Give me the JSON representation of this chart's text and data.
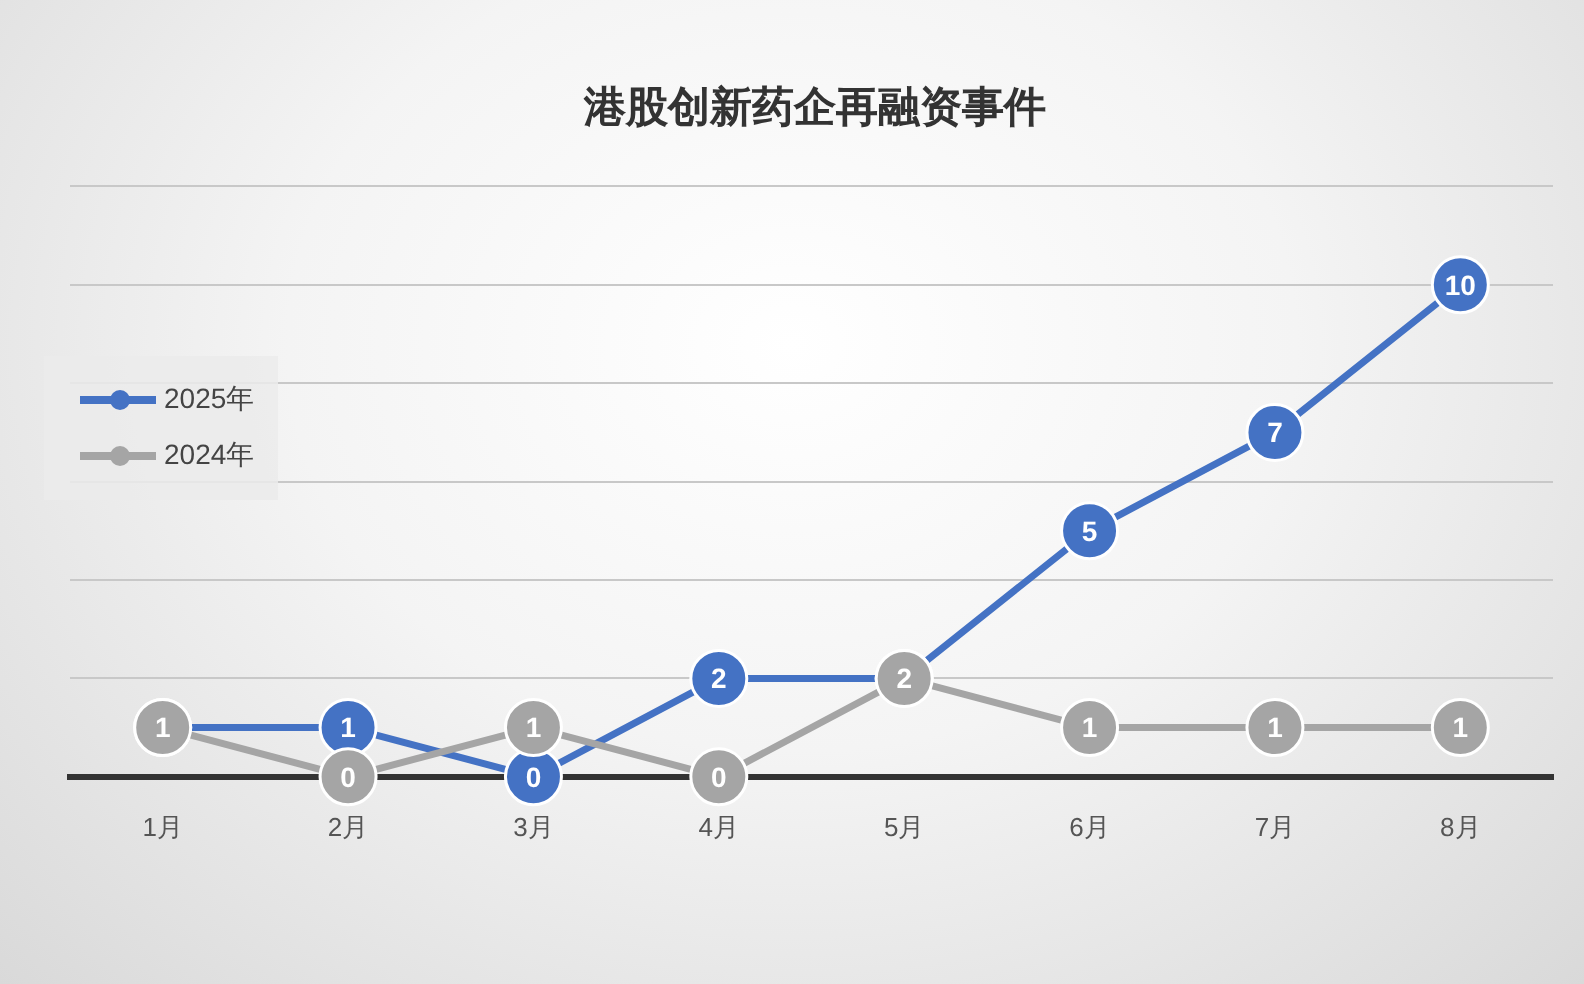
{
  "chart_data": {
    "type": "line",
    "title": "港股创新药企再融资事件",
    "categories": [
      "1月",
      "2月",
      "3月",
      "4月",
      "5月",
      "6月",
      "7月",
      "8月"
    ],
    "series": [
      {
        "name": "2025年",
        "color": "#4472c4",
        "values": [
          1,
          1,
          0,
          2,
          2,
          5,
          7,
          10
        ],
        "value_labels": [
          null,
          "1",
          "0",
          "2",
          null,
          "5",
          "7",
          "10"
        ]
      },
      {
        "name": "2024年",
        "color": "#a5a5a5",
        "values": [
          1,
          0,
          1,
          0,
          2,
          1,
          1,
          1
        ],
        "value_labels": [
          "1",
          "0",
          "1",
          "0",
          "2",
          "1",
          "1",
          "1"
        ]
      }
    ],
    "ylim": [
      0,
      12
    ],
    "yticks": [
      {
        "value": 0,
        "label": null
      },
      {
        "value": 2,
        "label": null
      },
      {
        "value": 4,
        "label": null
      },
      {
        "value": 6,
        "label": null
      },
      {
        "value": 8,
        "label": null
      },
      {
        "value": 10,
        "label": null
      },
      {
        "value": 12,
        "label": null
      }
    ],
    "tick_labels": "x",
    "grid": "y",
    "legend": "left",
    "marker": "circle",
    "line_style": "solid"
  }
}
